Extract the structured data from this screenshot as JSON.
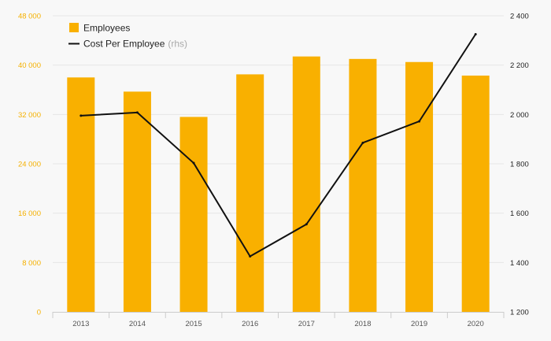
{
  "chart_data": {
    "type": "bar+line",
    "title": "",
    "categories": [
      "2013",
      "2014",
      "2015",
      "2016",
      "2017",
      "2018",
      "2019",
      "2020"
    ],
    "series": [
      {
        "name": "Employees",
        "type": "bar",
        "axis": "left",
        "color": "#f9b000",
        "values": [
          38000,
          35700,
          31600,
          38500,
          41400,
          41000,
          40500,
          38300
        ]
      },
      {
        "name": "Cost Per Employee",
        "name_suffix": "(rhs)",
        "type": "line",
        "axis": "right",
        "color": "#111111",
        "values": [
          1995,
          2008,
          1803,
          1425,
          1555,
          1885,
          1972,
          2325
        ]
      }
    ],
    "y_left": {
      "range": [
        0,
        48000
      ],
      "ticks": [
        0,
        8000,
        16000,
        24000,
        32000,
        40000,
        48000
      ],
      "tick_labels": [
        "0",
        "8 000",
        "16 000",
        "24 000",
        "32 000",
        "40 000",
        "48 000"
      ],
      "color": "#f5b000"
    },
    "y_right": {
      "range": [
        1200,
        2400
      ],
      "ticks": [
        1200,
        1400,
        1600,
        1800,
        2000,
        2200,
        2400
      ],
      "tick_labels": [
        "1 200",
        "1 400",
        "1 600",
        "1 800",
        "2 000",
        "2 200",
        "2 400"
      ],
      "color": "#222222"
    },
    "grid": true,
    "legend_position": "top-left"
  }
}
